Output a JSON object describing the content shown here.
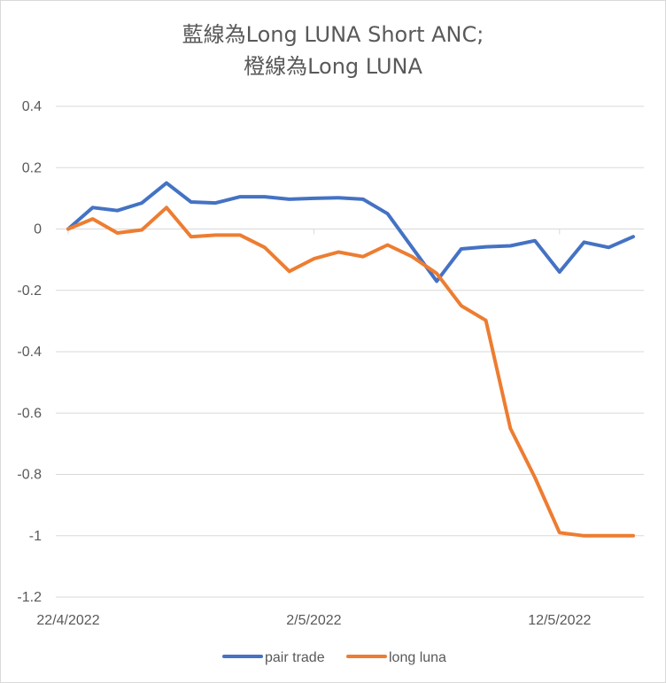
{
  "chart_data": {
    "type": "line",
    "title_lines": [
      "藍線為Long LUNA Short ANC;",
      "橙線為Long LUNA"
    ],
    "xlabel": "",
    "ylabel": "",
    "ylim": [
      -1.2,
      0.4
    ],
    "y_ticks": [
      0.4,
      0.2,
      0,
      -0.2,
      -0.4,
      -0.6,
      -0.8,
      -1,
      -1.2
    ],
    "y_tick_labels": [
      "0.4",
      "0.2",
      "0",
      "-0.2",
      "-0.4",
      "-0.6",
      "-0.8",
      "-1",
      "-1.2"
    ],
    "x": [
      "22/4/2022",
      "23/4/2022",
      "24/4/2022",
      "25/4/2022",
      "26/4/2022",
      "27/4/2022",
      "28/4/2022",
      "29/4/2022",
      "30/4/2022",
      "1/5/2022",
      "2/5/2022",
      "3/5/2022",
      "4/5/2022",
      "5/5/2022",
      "6/5/2022",
      "7/5/2022",
      "8/5/2022",
      "9/5/2022",
      "10/5/2022",
      "11/5/2022",
      "12/5/2022",
      "13/5/2022",
      "14/5/2022",
      "15/5/2022"
    ],
    "x_tick_labels": [
      {
        "label": "22/4/2022",
        "x": "22/4/2022"
      },
      {
        "label": "2/5/2022",
        "x": "2/5/2022"
      },
      {
        "label": "12/5/2022",
        "x": "12/5/2022"
      }
    ],
    "grid": "horizontal",
    "legend_position": "bottom",
    "series": [
      {
        "name": "pair trade",
        "color": "#4472c4",
        "values": [
          0,
          0.07,
          0.06,
          0.085,
          0.15,
          0.088,
          0.085,
          0.105,
          0.105,
          0.097,
          0.1,
          0.102,
          0.097,
          0.05,
          -0.06,
          -0.17,
          -0.065,
          -0.058,
          -0.055,
          -0.038,
          -0.14,
          -0.043,
          -0.06,
          -0.025
        ]
      },
      {
        "name": "long luna",
        "color": "#ed7d31",
        "values": [
          0,
          0.033,
          -0.013,
          -0.003,
          0.07,
          -0.025,
          -0.02,
          -0.02,
          -0.06,
          -0.138,
          -0.097,
          -0.075,
          -0.09,
          -0.052,
          -0.09,
          -0.145,
          -0.25,
          -0.298,
          -0.65,
          -0.81,
          -0.99,
          -1.0,
          -1.0,
          -1.0
        ]
      }
    ]
  }
}
